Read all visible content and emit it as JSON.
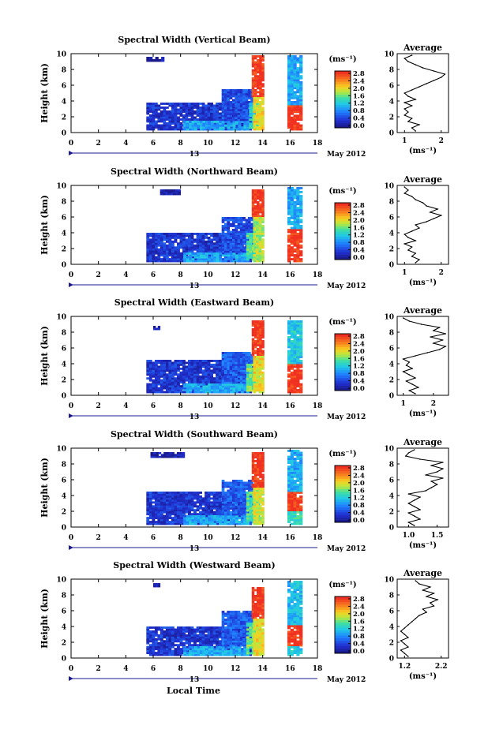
{
  "figure": {
    "xlabel": "Local Time",
    "date_day": "13",
    "date_month_year": "May 2012",
    "colorbar_unit": "(ms⁻¹)",
    "profile_title": "Average",
    "profile_unit": "(ms⁻¹)"
  },
  "chart_data": [
    {
      "type": "heatmap",
      "title": "Spectral Width (Vertical Beam)",
      "xlabel": "",
      "ylabel": "Height (km)",
      "xlim": [
        0,
        18
      ],
      "ylim": [
        0,
        10
      ],
      "xticks": [
        "0",
        "2",
        "4",
        "6",
        "8",
        "10",
        "12",
        "14",
        "16",
        "18"
      ],
      "yticks": [
        "0",
        "2",
        "4",
        "6",
        "8",
        "10"
      ],
      "colorbar": {
        "ticks": [
          "0.0",
          "0.4",
          "0.8",
          "1.2",
          "1.6",
          "2.0",
          "2.4",
          "2.8"
        ],
        "range": [
          0,
          2.8
        ]
      },
      "data_blocks": [
        {
          "t0": 5.5,
          "t1": 13.2,
          "h0": 0.3,
          "h1": 3.8,
          "v": 0.35
        },
        {
          "t0": 8.2,
          "t1": 13.0,
          "h0": 0.3,
          "h1": 1.5,
          "v": 1.0
        },
        {
          "t0": 11.0,
          "t1": 13.3,
          "h0": 1.5,
          "h1": 5.5,
          "v": 0.5
        },
        {
          "t0": 13.0,
          "t1": 13.8,
          "h0": 0.5,
          "h1": 3.8,
          "v": 1.3
        },
        {
          "t0": 13.2,
          "t1": 14.1,
          "h0": 4.5,
          "h1": 9.8,
          "v": 2.8
        },
        {
          "t0": 13.3,
          "t1": 14.1,
          "h0": 0.3,
          "h1": 4.5,
          "v": 2.0
        },
        {
          "t0": 15.8,
          "t1": 16.9,
          "h0": 0.3,
          "h1": 3.5,
          "v": 2.8
        },
        {
          "t0": 15.8,
          "t1": 16.9,
          "h0": 3.5,
          "h1": 9.8,
          "v": 1.0
        },
        {
          "t0": 5.5,
          "t1": 6.8,
          "h0": 9.0,
          "h1": 9.6,
          "v": 0.1
        }
      ],
      "profile": {
        "xticks": [
          "1",
          "2"
        ],
        "xlim": [
          0.8,
          2.2
        ],
        "heights": [
          0.2,
          0.6,
          1.0,
          1.4,
          1.8,
          2.2,
          2.6,
          3.0,
          3.4,
          3.8,
          4.2,
          4.6,
          5.0,
          5.4,
          5.8,
          6.2,
          6.6,
          7.0,
          7.4,
          7.8,
          8.2,
          8.6,
          9.0,
          9.4,
          9.8
        ],
        "values": [
          1.3,
          1.2,
          1.4,
          1.1,
          1.2,
          1.0,
          1.1,
          1.0,
          1.2,
          1.0,
          1.3,
          1.1,
          1.0,
          1.2,
          1.4,
          1.6,
          1.8,
          2.0,
          2.1,
          1.8,
          1.5,
          1.3,
          1.1,
          1.0,
          1.2
        ]
      }
    },
    {
      "type": "heatmap",
      "title": "Spectral Width (Northward Beam)",
      "xlabel": "",
      "ylabel": "Height (km)",
      "xlim": [
        0,
        18
      ],
      "ylim": [
        0,
        10
      ],
      "xticks": [
        "0",
        "2",
        "4",
        "6",
        "8",
        "10",
        "12",
        "14",
        "16",
        "18"
      ],
      "yticks": [
        "0",
        "2",
        "4",
        "6",
        "8",
        "10"
      ],
      "colorbar": {
        "ticks": [
          "0.0",
          "0.4",
          "0.8",
          "1.2",
          "1.6",
          "2.0",
          "2.4",
          "2.8"
        ],
        "range": [
          0,
          2.8
        ]
      },
      "data_blocks": [
        {
          "t0": 5.5,
          "t1": 13.2,
          "h0": 0.3,
          "h1": 4.0,
          "v": 0.35
        },
        {
          "t0": 8.2,
          "t1": 13.0,
          "h0": 0.3,
          "h1": 1.5,
          "v": 1.0
        },
        {
          "t0": 11.0,
          "t1": 13.3,
          "h0": 1.5,
          "h1": 6.0,
          "v": 0.5
        },
        {
          "t0": 12.8,
          "t1": 13.8,
          "h0": 0.5,
          "h1": 4.0,
          "v": 1.5
        },
        {
          "t0": 13.2,
          "t1": 14.1,
          "h0": 6.0,
          "h1": 9.5,
          "v": 2.8
        },
        {
          "t0": 13.3,
          "t1": 14.1,
          "h0": 0.3,
          "h1": 6.0,
          "v": 1.8
        },
        {
          "t0": 15.8,
          "t1": 16.9,
          "h0": 0.3,
          "h1": 4.5,
          "v": 2.8
        },
        {
          "t0": 15.8,
          "t1": 16.9,
          "h0": 4.5,
          "h1": 9.8,
          "v": 1.0
        },
        {
          "t0": 6.5,
          "t1": 8.0,
          "h0": 8.8,
          "h1": 9.5,
          "v": 0.1
        }
      ],
      "profile": {
        "xticks": [
          "1",
          "2"
        ],
        "xlim": [
          0.8,
          2.2
        ],
        "heights": [
          0.2,
          0.6,
          1.0,
          1.4,
          1.8,
          2.2,
          2.6,
          3.0,
          3.4,
          3.8,
          4.2,
          4.6,
          5.0,
          5.4,
          5.8,
          6.2,
          6.6,
          7.0,
          7.4,
          7.8,
          8.2,
          8.6,
          9.0,
          9.4,
          9.8
        ],
        "values": [
          1.3,
          1.4,
          1.2,
          1.3,
          1.1,
          1.2,
          1.0,
          1.3,
          1.1,
          1.0,
          1.2,
          1.4,
          1.3,
          1.6,
          1.8,
          2.0,
          1.7,
          1.9,
          1.6,
          1.5,
          1.3,
          1.2,
          1.0,
          1.1,
          1.0
        ]
      }
    },
    {
      "type": "heatmap",
      "title": "Spectral Width (Eastward Beam)",
      "xlabel": "",
      "ylabel": "Height (km)",
      "xlim": [
        0,
        18
      ],
      "ylim": [
        0,
        10
      ],
      "xticks": [
        "0",
        "2",
        "4",
        "6",
        "8",
        "10",
        "12",
        "14",
        "16",
        "18"
      ],
      "yticks": [
        "0",
        "2",
        "4",
        "6",
        "8",
        "10"
      ],
      "colorbar": {
        "ticks": [
          "0.0",
          "0.4",
          "0.8",
          "1.2",
          "1.6",
          "2.0",
          "2.4",
          "2.8"
        ],
        "range": [
          0,
          2.8
        ]
      },
      "data_blocks": [
        {
          "t0": 5.5,
          "t1": 13.2,
          "h0": 0.3,
          "h1": 4.5,
          "v": 0.35
        },
        {
          "t0": 8.2,
          "t1": 13.0,
          "h0": 0.3,
          "h1": 1.5,
          "v": 1.0
        },
        {
          "t0": 11.0,
          "t1": 13.3,
          "h0": 1.5,
          "h1": 5.5,
          "v": 0.6
        },
        {
          "t0": 12.8,
          "t1": 13.8,
          "h0": 0.5,
          "h1": 4.0,
          "v": 1.6
        },
        {
          "t0": 13.2,
          "t1": 14.1,
          "h0": 5.0,
          "h1": 9.5,
          "v": 2.8
        },
        {
          "t0": 13.3,
          "t1": 14.1,
          "h0": 0.3,
          "h1": 5.0,
          "v": 2.0
        },
        {
          "t0": 15.8,
          "t1": 16.9,
          "h0": 0.3,
          "h1": 4.0,
          "v": 2.8
        },
        {
          "t0": 15.8,
          "t1": 16.9,
          "h0": 4.0,
          "h1": 9.5,
          "v": 1.2
        },
        {
          "t0": 6.0,
          "t1": 6.5,
          "h0": 8.3,
          "h1": 8.8,
          "v": 0.1
        }
      ],
      "profile": {
        "xticks": [
          "1",
          "2"
        ],
        "xlim": [
          0.8,
          2.5
        ],
        "heights": [
          0.2,
          0.6,
          1.0,
          1.4,
          1.8,
          2.2,
          2.6,
          3.0,
          3.4,
          3.8,
          4.2,
          4.6,
          5.0,
          5.4,
          5.8,
          6.2,
          6.6,
          7.0,
          7.4,
          7.8,
          8.2,
          8.6,
          9.0,
          9.4,
          9.8
        ],
        "values": [
          1.4,
          1.2,
          1.5,
          1.3,
          1.1,
          1.4,
          1.2,
          1.0,
          1.3,
          1.1,
          1.2,
          1.0,
          1.4,
          1.8,
          2.2,
          2.4,
          2.0,
          2.3,
          1.9,
          2.4,
          2.0,
          2.2,
          1.6,
          1.2,
          1.0
        ]
      }
    },
    {
      "type": "heatmap",
      "title": "Spectral Width (Southward Beam)",
      "xlabel": "",
      "ylabel": "Height (km)",
      "xlim": [
        0,
        18
      ],
      "ylim": [
        0,
        10
      ],
      "xticks": [
        "0",
        "2",
        "4",
        "6",
        "8",
        "10",
        "12",
        "14",
        "16",
        "18"
      ],
      "yticks": [
        "0",
        "2",
        "4",
        "6",
        "8",
        "10"
      ],
      "colorbar": {
        "ticks": [
          "0.0",
          "0.4",
          "0.8",
          "1.2",
          "1.6",
          "2.0",
          "2.4",
          "2.8"
        ],
        "range": [
          0,
          2.8
        ]
      },
      "data_blocks": [
        {
          "t0": 5.5,
          "t1": 13.2,
          "h0": 0.3,
          "h1": 4.5,
          "v": 0.35
        },
        {
          "t0": 8.2,
          "t1": 13.0,
          "h0": 0.3,
          "h1": 1.5,
          "v": 1.0
        },
        {
          "t0": 11.0,
          "t1": 13.3,
          "h0": 1.5,
          "h1": 6.0,
          "v": 0.6
        },
        {
          "t0": 12.8,
          "t1": 13.8,
          "h0": 0.5,
          "h1": 4.5,
          "v": 1.5
        },
        {
          "t0": 13.2,
          "t1": 14.1,
          "h0": 5.0,
          "h1": 9.5,
          "v": 2.8
        },
        {
          "t0": 13.3,
          "t1": 14.1,
          "h0": 0.3,
          "h1": 5.0,
          "v": 1.9
        },
        {
          "t0": 15.8,
          "t1": 16.9,
          "h0": 2.0,
          "h1": 4.5,
          "v": 2.8
        },
        {
          "t0": 15.8,
          "t1": 16.9,
          "h0": 0.3,
          "h1": 2.0,
          "v": 1.4
        },
        {
          "t0": 15.8,
          "t1": 16.9,
          "h0": 4.5,
          "h1": 9.8,
          "v": 1.0
        },
        {
          "t0": 5.8,
          "t1": 8.3,
          "h0": 8.8,
          "h1": 9.5,
          "v": 0.1
        }
      ],
      "profile": {
        "xticks": [
          "1.0",
          "1.5"
        ],
        "xlim": [
          0.8,
          1.7
        ],
        "heights": [
          0.2,
          0.6,
          1.0,
          1.4,
          1.8,
          2.2,
          2.6,
          3.0,
          3.4,
          3.8,
          4.2,
          4.6,
          5.0,
          5.4,
          5.8,
          6.2,
          6.6,
          7.0,
          7.4,
          7.8,
          8.2,
          8.6,
          9.0,
          9.4,
          9.8
        ],
        "values": [
          1.1,
          1.0,
          1.2,
          1.1,
          1.0,
          1.2,
          1.1,
          1.0,
          1.1,
          1.2,
          1.0,
          1.3,
          1.4,
          1.5,
          1.4,
          1.6,
          1.3,
          1.5,
          1.6,
          1.4,
          1.6,
          1.2,
          0.95,
          1.0,
          1.1
        ]
      }
    },
    {
      "type": "heatmap",
      "title": "Spectral Width (Westward Beam)",
      "xlabel": "Local Time",
      "ylabel": "Height (km)",
      "xlim": [
        0,
        18
      ],
      "ylim": [
        0,
        10
      ],
      "xticks": [
        "0",
        "2",
        "4",
        "6",
        "8",
        "10",
        "12",
        "14",
        "16",
        "18"
      ],
      "yticks": [
        "0",
        "2",
        "4",
        "6",
        "8",
        "10"
      ],
      "colorbar": {
        "ticks": [
          "0.0",
          "0.4",
          "0.8",
          "1.2",
          "1.6",
          "2.0",
          "2.4",
          "2.8"
        ],
        "range": [
          0,
          2.8
        ]
      },
      "data_blocks": [
        {
          "t0": 5.5,
          "t1": 13.2,
          "h0": 0.3,
          "h1": 4.0,
          "v": 0.35
        },
        {
          "t0": 8.2,
          "t1": 13.0,
          "h0": 0.3,
          "h1": 1.5,
          "v": 1.0
        },
        {
          "t0": 11.0,
          "t1": 13.3,
          "h0": 1.5,
          "h1": 6.0,
          "v": 0.6
        },
        {
          "t0": 12.8,
          "t1": 13.8,
          "h0": 0.5,
          "h1": 4.5,
          "v": 1.6
        },
        {
          "t0": 13.2,
          "t1": 14.1,
          "h0": 5.0,
          "h1": 9.0,
          "v": 2.8
        },
        {
          "t0": 13.3,
          "t1": 14.1,
          "h0": 0.3,
          "h1": 5.0,
          "v": 2.0
        },
        {
          "t0": 15.8,
          "t1": 16.9,
          "h0": 1.5,
          "h1": 4.2,
          "v": 2.8
        },
        {
          "t0": 15.8,
          "t1": 16.9,
          "h0": 0.3,
          "h1": 1.5,
          "v": 1.2
        },
        {
          "t0": 15.8,
          "t1": 16.9,
          "h0": 4.2,
          "h1": 9.8,
          "v": 1.1
        },
        {
          "t0": 6.0,
          "t1": 6.5,
          "h0": 9.0,
          "h1": 9.5,
          "v": 0.1
        }
      ],
      "profile": {
        "xticks": [
          "1.2",
          "2.2"
        ],
        "xlim": [
          1.0,
          2.4
        ],
        "heights": [
          0.2,
          0.6,
          1.0,
          1.4,
          1.8,
          2.2,
          2.6,
          3.0,
          3.4,
          3.8,
          4.2,
          4.6,
          5.0,
          5.4,
          5.8,
          6.2,
          6.6,
          7.0,
          7.4,
          7.8,
          8.2,
          8.6,
          9.0,
          9.4,
          9.8
        ],
        "values": [
          1.3,
          1.2,
          1.1,
          1.3,
          1.2,
          1.1,
          1.3,
          1.2,
          1.1,
          1.2,
          1.3,
          1.4,
          1.5,
          1.6,
          1.8,
          1.7,
          2.0,
          1.9,
          2.1,
          1.8,
          2.0,
          1.7,
          1.9,
          1.6,
          1.5
        ]
      }
    }
  ]
}
